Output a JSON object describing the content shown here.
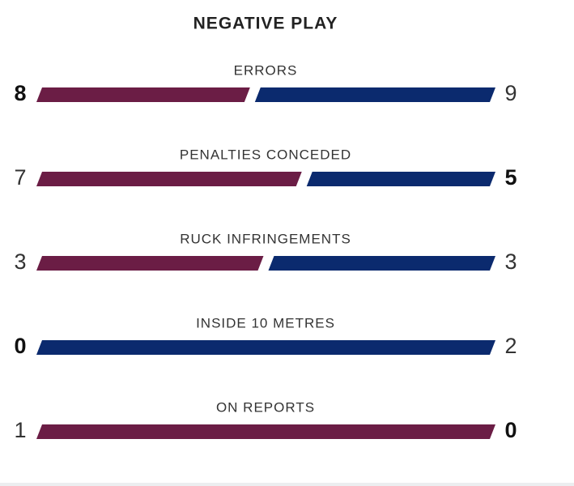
{
  "chart_data": {
    "type": "comparison",
    "title": "NEGATIVE PLAY",
    "categories": [
      "ERRORS",
      "PENALTIES CONCEDED",
      "RUCK INFRINGEMENTS",
      "INSIDE 10 METRES",
      "ON REPORTS"
    ],
    "series": [
      {
        "color": "#6b1d45",
        "values": [
          8,
          7,
          3,
          0,
          1
        ]
      },
      {
        "color": "#0b2a6e",
        "values": [
          9,
          5,
          3,
          2,
          0
        ]
      }
    ],
    "lower_is_better": true
  }
}
